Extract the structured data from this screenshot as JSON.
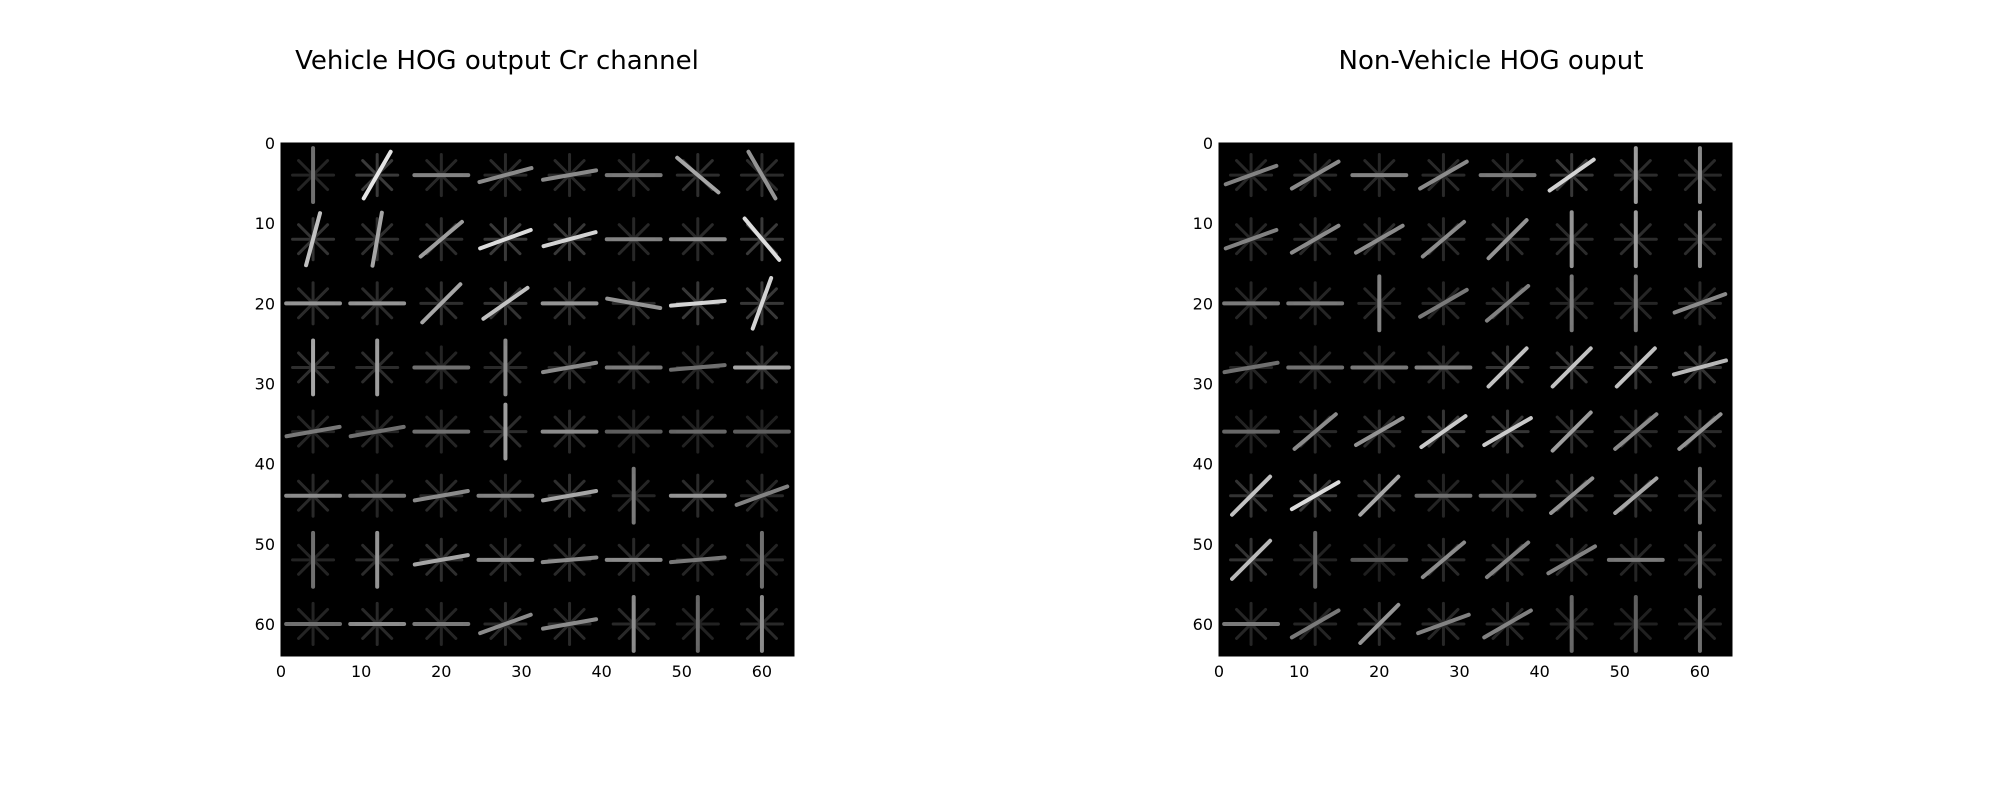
{
  "chart_data": [
    {
      "type": "heatmap",
      "title": "Vehicle HOG output Cr channel",
      "xlim": [
        0,
        64
      ],
      "ylim": [
        64,
        0
      ],
      "xticks": [
        "0",
        "10",
        "20",
        "30",
        "40",
        "50",
        "60"
      ],
      "yticks": [
        "0",
        "10",
        "20",
        "30",
        "40",
        "50",
        "60"
      ],
      "grid": false,
      "colormap": "gray",
      "cells": 8,
      "cell_orientations": [
        [
          90,
          60,
          0,
          15,
          10,
          0,
          -40,
          -60
        ],
        [
          75,
          80,
          40,
          20,
          15,
          0,
          0,
          -50
        ],
        [
          0,
          0,
          45,
          35,
          0,
          -10,
          5,
          70
        ],
        [
          90,
          90,
          0,
          90,
          10,
          0,
          5,
          0
        ],
        [
          10,
          10,
          0,
          90,
          0,
          0,
          0,
          0
        ],
        [
          0,
          0,
          10,
          0,
          10,
          90,
          0,
          20
        ],
        [
          90,
          90,
          10,
          0,
          5,
          0,
          5,
          90
        ],
        [
          0,
          0,
          0,
          20,
          10,
          90,
          90,
          90
        ]
      ],
      "cell_intensity": [
        [
          0.3,
          0.95,
          0.4,
          0.45,
          0.45,
          0.35,
          0.6,
          0.5
        ],
        [
          0.75,
          0.6,
          0.55,
          0.9,
          0.85,
          0.4,
          0.45,
          0.9
        ],
        [
          0.5,
          0.5,
          0.6,
          0.75,
          0.5,
          0.5,
          0.85,
          0.85
        ],
        [
          0.6,
          0.55,
          0.3,
          0.45,
          0.45,
          0.35,
          0.3,
          0.6
        ],
        [
          0.35,
          0.3,
          0.3,
          0.55,
          0.45,
          0.2,
          0.25,
          0.2
        ],
        [
          0.45,
          0.35,
          0.45,
          0.4,
          0.6,
          0.35,
          0.5,
          0.4
        ],
        [
          0.3,
          0.5,
          0.6,
          0.45,
          0.45,
          0.45,
          0.35,
          0.3
        ],
        [
          0.3,
          0.45,
          0.35,
          0.45,
          0.45,
          0.45,
          0.25,
          0.45
        ]
      ]
    },
    {
      "type": "heatmap",
      "title": "Non-Vehicle HOG ouput",
      "xlim": [
        0,
        64
      ],
      "ylim": [
        64,
        0
      ],
      "xticks": [
        "0",
        "10",
        "20",
        "30",
        "40",
        "50",
        "60"
      ],
      "yticks": [
        "0",
        "10",
        "20",
        "30",
        "40",
        "50",
        "60"
      ],
      "grid": false,
      "colormap": "gray",
      "cells": 8,
      "cell_orientations": [
        [
          20,
          30,
          0,
          30,
          0,
          35,
          90,
          90
        ],
        [
          20,
          30,
          30,
          40,
          45,
          90,
          90,
          90
        ],
        [
          0,
          0,
          90,
          30,
          40,
          90,
          90,
          20
        ],
        [
          10,
          0,
          0,
          0,
          45,
          45,
          45,
          15
        ],
        [
          0,
          40,
          30,
          35,
          30,
          45,
          40,
          40
        ],
        [
          45,
          30,
          45,
          0,
          0,
          40,
          40,
          90
        ],
        [
          45,
          90,
          0,
          40,
          40,
          30,
          0,
          90
        ],
        [
          0,
          30,
          45,
          20,
          30,
          90,
          90,
          90
        ]
      ],
      "cell_intensity": [
        [
          0.4,
          0.45,
          0.4,
          0.45,
          0.35,
          0.85,
          0.55,
          0.45
        ],
        [
          0.4,
          0.45,
          0.45,
          0.45,
          0.5,
          0.5,
          0.55,
          0.5
        ],
        [
          0.35,
          0.35,
          0.4,
          0.35,
          0.4,
          0.35,
          0.35,
          0.45
        ],
        [
          0.3,
          0.3,
          0.35,
          0.4,
          0.75,
          0.75,
          0.75,
          0.7
        ],
        [
          0.25,
          0.45,
          0.5,
          0.8,
          0.8,
          0.55,
          0.45,
          0.5
        ],
        [
          0.75,
          0.9,
          0.6,
          0.3,
          0.3,
          0.5,
          0.6,
          0.35
        ],
        [
          0.7,
          0.25,
          0.15,
          0.45,
          0.4,
          0.4,
          0.35,
          0.3
        ],
        [
          0.35,
          0.35,
          0.5,
          0.4,
          0.4,
          0.25,
          0.2,
          0.3
        ]
      ]
    }
  ]
}
